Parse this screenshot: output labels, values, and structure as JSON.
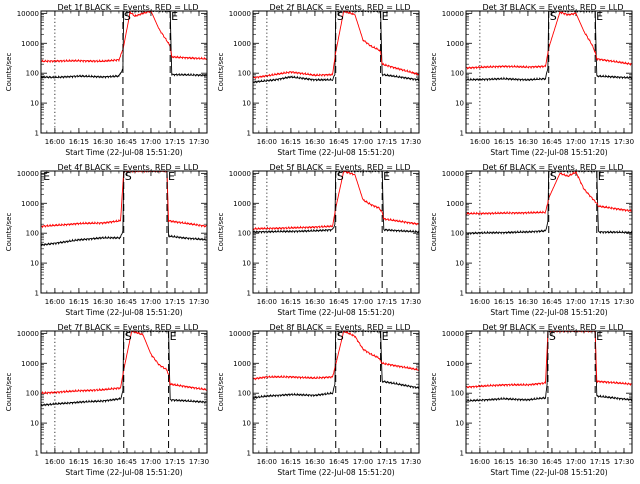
{
  "figure": {
    "axis_color": "#000000",
    "events_color": "#000000",
    "lld_color": "#ff0000"
  },
  "chart_data": [
    {
      "type": "line",
      "title": "Det 1f BLACK = Events, RED = LLD",
      "xlabel": "Start Time (22-Jul-08 15:51:20)",
      "ylabel": "Counts/sec",
      "xlim": [
        "15:51:20",
        "17:35:00"
      ],
      "ylim": [
        1,
        12000
      ],
      "yscale": "log",
      "xtick_labels": [
        "16:00",
        "16:15",
        "16:30",
        "16:45",
        "17:00",
        "17:15",
        "17:30"
      ],
      "ytick_labels": [
        "1",
        "10",
        "100",
        "1000",
        "10000"
      ],
      "markers": [
        {
          "label": "S",
          "time": "16:42:30",
          "style": "dashed"
        },
        {
          "label": "E",
          "time": "17:12:00",
          "style": "dashed"
        },
        {
          "label": "",
          "time": "16:00:00",
          "style": "dotted"
        }
      ],
      "series": [
        {
          "color": "#000000",
          "x": [
            "15:51:20",
            "16:00",
            "16:15",
            "16:30",
            "16:40",
            "16:42:30",
            "16:43",
            "17:12",
            "17:13",
            "17:35"
          ],
          "y": [
            75,
            72,
            80,
            75,
            80,
            140,
            12000,
            12000,
            90,
            85
          ]
        },
        {
          "color": "#ff0000",
          "x": [
            "15:51:20",
            "16:00",
            "16:15",
            "16:30",
            "16:40",
            "16:42:30",
            "16:47",
            "16:50",
            "16:55",
            "17:00",
            "17:05",
            "17:10",
            "17:12",
            "17:13",
            "17:35"
          ],
          "y": [
            250,
            255,
            260,
            250,
            280,
            600,
            11000,
            8000,
            10000,
            12000,
            3000,
            1200,
            800,
            350,
            300
          ]
        }
      ]
    },
    {
      "type": "line",
      "title": "Det 2f BLACK = Events, RED = LLD",
      "xlabel": "Start Time (22-Jul-08 15:51:20)",
      "ylabel": "Counts/sec",
      "xlim": [
        "15:51:20",
        "17:35:00"
      ],
      "ylim": [
        1,
        12000
      ],
      "yscale": "log",
      "xtick_labels": [
        "16:00",
        "16:15",
        "16:30",
        "16:45",
        "17:00",
        "17:15",
        "17:30"
      ],
      "ytick_labels": [
        "1",
        "10",
        "100",
        "1000",
        "10000"
      ],
      "markers": [
        {
          "label": "S",
          "time": "16:43:00",
          "style": "dashed"
        },
        {
          "label": "E",
          "time": "17:11:00",
          "style": "dashed"
        },
        {
          "label": "",
          "time": "16:00:00",
          "style": "dotted"
        }
      ],
      "series": [
        {
          "color": "#000000",
          "x": [
            "15:51:20",
            "16:05",
            "16:15",
            "16:30",
            "16:41",
            "16:42:30",
            "16:43",
            "17:11",
            "17:12",
            "17:35"
          ],
          "y": [
            50,
            60,
            75,
            60,
            60,
            90,
            12000,
            12000,
            90,
            60
          ]
        },
        {
          "color": "#ff0000",
          "x": [
            "15:51:20",
            "16:05",
            "16:15",
            "16:30",
            "16:41",
            "16:43",
            "16:48",
            "16:55",
            "17:00",
            "17:05",
            "17:10",
            "17:11",
            "17:12",
            "17:35"
          ],
          "y": [
            70,
            90,
            110,
            85,
            90,
            500,
            12000,
            9000,
            1300,
            800,
            600,
            500,
            200,
            90
          ]
        }
      ]
    },
    {
      "type": "line",
      "title": "Det 3f BLACK = Events, RED = LLD",
      "xlabel": "Start Time (22-Jul-08 15:51:20)",
      "ylabel": "Counts/sec",
      "xlim": [
        "15:51:20",
        "17:35:00"
      ],
      "ylim": [
        1,
        12000
      ],
      "yscale": "log",
      "xtick_labels": [
        "16:00",
        "16:15",
        "16:30",
        "16:45",
        "17:00",
        "17:15",
        "17:30"
      ],
      "ytick_labels": [
        "1",
        "10",
        "100",
        "1000",
        "10000"
      ],
      "markers": [
        {
          "label": "S",
          "time": "16:43:00",
          "style": "dashed"
        },
        {
          "label": "E",
          "time": "17:12:00",
          "style": "dashed"
        },
        {
          "label": "",
          "time": "16:00:00",
          "style": "dotted"
        }
      ],
      "series": [
        {
          "color": "#000000",
          "x": [
            "15:51:20",
            "16:15",
            "16:30",
            "16:41",
            "16:42:30",
            "16:43",
            "17:12",
            "17:13",
            "17:35"
          ],
          "y": [
            60,
            65,
            60,
            65,
            150,
            12000,
            12000,
            80,
            70
          ]
        },
        {
          "color": "#ff0000",
          "x": [
            "15:51:20",
            "16:15",
            "16:30",
            "16:41",
            "16:43",
            "16:50",
            "16:55",
            "17:00",
            "17:05",
            "17:10",
            "17:12",
            "17:13",
            "17:35"
          ],
          "y": [
            150,
            170,
            160,
            170,
            700,
            11000,
            9000,
            10000,
            2500,
            900,
            500,
            300,
            200
          ]
        }
      ]
    },
    {
      "type": "line",
      "title": "Det 4f BLACK = Events, RED = LLD",
      "xlabel": "Start Time (22-Jul-08 15:51:20)",
      "ylabel": "Counts/sec",
      "xlim": [
        "15:51:20",
        "17:35:00"
      ],
      "ylim": [
        1,
        12000
      ],
      "yscale": "log",
      "xtick_labels": [
        "16:00",
        "16:15",
        "16:30",
        "16:45",
        "17:00",
        "17:15",
        "17:30"
      ],
      "ytick_labels": [
        "1",
        "10",
        "100",
        "1000",
        "10000"
      ],
      "markers": [
        {
          "label": "S",
          "time": "16:43:00",
          "style": "dashed"
        },
        {
          "label": "E",
          "time": "17:10:00",
          "style": "dashed"
        },
        {
          "label": "E",
          "time": "15:52:00",
          "style": "none"
        }
      ],
      "series": [
        {
          "color": "#000000",
          "x": [
            "15:51:20",
            "16:05",
            "16:15",
            "16:30",
            "16:41",
            "16:42:30",
            "16:43",
            "17:10",
            "17:11",
            "17:20",
            "17:35"
          ],
          "y": [
            40,
            50,
            60,
            70,
            70,
            120,
            12000,
            12000,
            80,
            70,
            60
          ]
        },
        {
          "color": "#ff0000",
          "x": [
            "15:51:20",
            "16:05",
            "16:15",
            "16:30",
            "16:41",
            "16:43",
            "17:10",
            "17:11",
            "17:20",
            "17:35"
          ],
          "y": [
            170,
            190,
            210,
            220,
            260,
            12000,
            12000,
            260,
            220,
            170
          ]
        }
      ]
    },
    {
      "type": "line",
      "title": "Det 5f BLACK = Events, RED = LLD",
      "xlabel": "Start Time (22-Jul-08 15:51:20)",
      "ylabel": "Counts/sec",
      "xlim": [
        "15:51:20",
        "17:35:00"
      ],
      "ylim": [
        1,
        12000
      ],
      "yscale": "log",
      "xtick_labels": [
        "16:00",
        "16:15",
        "16:30",
        "16:45",
        "17:00",
        "17:15",
        "17:30"
      ],
      "ytick_labels": [
        "1",
        "10",
        "100",
        "1000",
        "10000"
      ],
      "markers": [
        {
          "label": "S",
          "time": "16:43:00",
          "style": "dashed"
        },
        {
          "label": "E",
          "time": "17:12:00",
          "style": "dashed"
        },
        {
          "label": "",
          "time": "16:00:00",
          "style": "dotted"
        }
      ],
      "series": [
        {
          "color": "#000000",
          "x": [
            "15:51:20",
            "16:15",
            "16:30",
            "16:41",
            "16:42:30",
            "16:43",
            "17:12",
            "17:13",
            "17:35"
          ],
          "y": [
            110,
            115,
            120,
            130,
            200,
            12000,
            12000,
            130,
            110
          ]
        },
        {
          "color": "#ff0000",
          "x": [
            "15:51:20",
            "16:15",
            "16:30",
            "16:41",
            "16:43",
            "16:48",
            "16:55",
            "17:00",
            "17:05",
            "17:10",
            "17:12",
            "17:13",
            "17:35"
          ],
          "y": [
            140,
            150,
            160,
            170,
            700,
            12000,
            9000,
            1300,
            900,
            700,
            500,
            300,
            200
          ]
        }
      ]
    },
    {
      "type": "line",
      "title": "Det 6f BLACK = Events, RED = LLD",
      "xlabel": "Start Time (22-Jul-08 15:51:20)",
      "ylabel": "Counts/sec",
      "xlim": [
        "15:51:20",
        "17:35:00"
      ],
      "ylim": [
        1,
        12000
      ],
      "yscale": "log",
      "xtick_labels": [
        "16:00",
        "16:15",
        "16:30",
        "16:45",
        "17:00",
        "17:15",
        "17:30"
      ],
      "ytick_labels": [
        "1",
        "10",
        "100",
        "1000",
        "10000"
      ],
      "markers": [
        {
          "label": "S",
          "time": "16:43:00",
          "style": "dashed"
        },
        {
          "label": "E",
          "time": "17:13:00",
          "style": "dashed"
        },
        {
          "label": "",
          "time": "16:00:00",
          "style": "dotted"
        }
      ],
      "series": [
        {
          "color": "#000000",
          "x": [
            "15:51:20",
            "16:15",
            "16:30",
            "16:41",
            "16:42:30",
            "16:43",
            "17:13",
            "17:14",
            "17:35"
          ],
          "y": [
            100,
            105,
            110,
            120,
            250,
            12000,
            12000,
            110,
            105
          ]
        },
        {
          "color": "#ff0000",
          "x": [
            "15:51:20",
            "16:15",
            "16:30",
            "16:41",
            "16:43",
            "16:50",
            "16:55",
            "17:00",
            "17:05",
            "17:10",
            "17:13",
            "17:14",
            "17:35"
          ],
          "y": [
            450,
            470,
            480,
            500,
            1500,
            10000,
            8000,
            11000,
            3000,
            1500,
            1000,
            800,
            550
          ]
        }
      ]
    },
    {
      "type": "line",
      "title": "Det 7f BLACK = Events, RED = LLD",
      "xlabel": "Start Time (22-Jul-08 15:51:20)",
      "ylabel": "Counts/sec",
      "xlim": [
        "15:51:20",
        "17:35:00"
      ],
      "ylim": [
        1,
        12000
      ],
      "yscale": "log",
      "xtick_labels": [
        "16:00",
        "16:15",
        "16:30",
        "16:45",
        "17:00",
        "17:15",
        "17:30"
      ],
      "ytick_labels": [
        "1",
        "10",
        "100",
        "1000",
        "10000"
      ],
      "markers": [
        {
          "label": "S",
          "time": "16:43:00",
          "style": "dashed"
        },
        {
          "label": "E",
          "time": "17:11:00",
          "style": "dashed"
        },
        {
          "label": "",
          "time": "16:00:00",
          "style": "dotted"
        }
      ],
      "series": [
        {
          "color": "#000000",
          "x": [
            "15:51:20",
            "16:15",
            "16:30",
            "16:41",
            "16:42:30",
            "16:43",
            "17:11",
            "17:12",
            "17:35"
          ],
          "y": [
            40,
            50,
            55,
            65,
            120,
            12000,
            12000,
            60,
            50
          ]
        },
        {
          "color": "#ff0000",
          "x": [
            "15:51:20",
            "16:15",
            "16:30",
            "16:41",
            "16:43",
            "16:48",
            "16:55",
            "17:00",
            "17:05",
            "17:10",
            "17:11",
            "17:12",
            "17:35"
          ],
          "y": [
            100,
            120,
            130,
            150,
            600,
            12000,
            9000,
            2000,
            900,
            600,
            400,
            200,
            130
          ]
        }
      ]
    },
    {
      "type": "line",
      "title": "Det 8f BLACK = Events, RED = LLD",
      "xlabel": "Start Time (22-Jul-08 15:51:20)",
      "ylabel": "Counts/sec",
      "xlim": [
        "15:51:20",
        "17:35:00"
      ],
      "ylim": [
        1,
        12000
      ],
      "yscale": "log",
      "xtick_labels": [
        "16:00",
        "16:15",
        "16:30",
        "16:45",
        "17:00",
        "17:15",
        "17:30"
      ],
      "ytick_labels": [
        "1",
        "10",
        "100",
        "1000",
        "10000"
      ],
      "markers": [
        {
          "label": "S",
          "time": "16:43:00",
          "style": "dashed"
        },
        {
          "label": "E",
          "time": "17:11:00",
          "style": "dashed"
        },
        {
          "label": "",
          "time": "16:00:00",
          "style": "dotted"
        }
      ],
      "series": [
        {
          "color": "#000000",
          "x": [
            "15:51:20",
            "16:00",
            "16:15",
            "16:30",
            "16:41",
            "16:42:30",
            "16:43",
            "17:11",
            "17:12",
            "17:35"
          ],
          "y": [
            70,
            80,
            90,
            85,
            100,
            200,
            12000,
            12000,
            250,
            150
          ]
        },
        {
          "color": "#ff0000",
          "x": [
            "15:51:20",
            "16:00",
            "16:15",
            "16:30",
            "16:41",
            "16:43",
            "16:48",
            "16:55",
            "17:00",
            "17:05",
            "17:10",
            "17:11",
            "17:12",
            "17:35"
          ],
          "y": [
            300,
            350,
            350,
            320,
            350,
            900,
            12000,
            8000,
            3000,
            2000,
            1500,
            1200,
            1000,
            600
          ]
        }
      ]
    },
    {
      "type": "line",
      "title": "Det 9f BLACK = Events, RED = LLD",
      "xlabel": "Start Time (22-Jul-08 15:51:20)",
      "ylabel": "Counts/sec",
      "xlim": [
        "15:51:20",
        "17:35:00"
      ],
      "ylim": [
        1,
        12000
      ],
      "yscale": "log",
      "xtick_labels": [
        "16:00",
        "16:15",
        "16:30",
        "16:45",
        "17:00",
        "17:15",
        "17:30"
      ],
      "ytick_labels": [
        "1",
        "10",
        "100",
        "1000",
        "10000"
      ],
      "markers": [
        {
          "label": "S",
          "time": "16:42:30",
          "style": "dashed"
        },
        {
          "label": "E",
          "time": "17:12:00",
          "style": "dashed"
        },
        {
          "label": "",
          "time": "16:00:00",
          "style": "dotted"
        }
      ],
      "series": [
        {
          "color": "#000000",
          "x": [
            "15:51:20",
            "16:15",
            "16:30",
            "16:41",
            "16:42",
            "16:42:30",
            "17:12",
            "17:13",
            "17:35"
          ],
          "y": [
            55,
            65,
            60,
            70,
            200,
            12000,
            12000,
            80,
            60
          ]
        },
        {
          "color": "#ff0000",
          "x": [
            "15:51:20",
            "16:15",
            "16:30",
            "16:41",
            "16:42:30",
            "17:12",
            "17:13",
            "17:35"
          ],
          "y": [
            160,
            190,
            190,
            220,
            12000,
            12000,
            250,
            200
          ]
        }
      ]
    }
  ]
}
